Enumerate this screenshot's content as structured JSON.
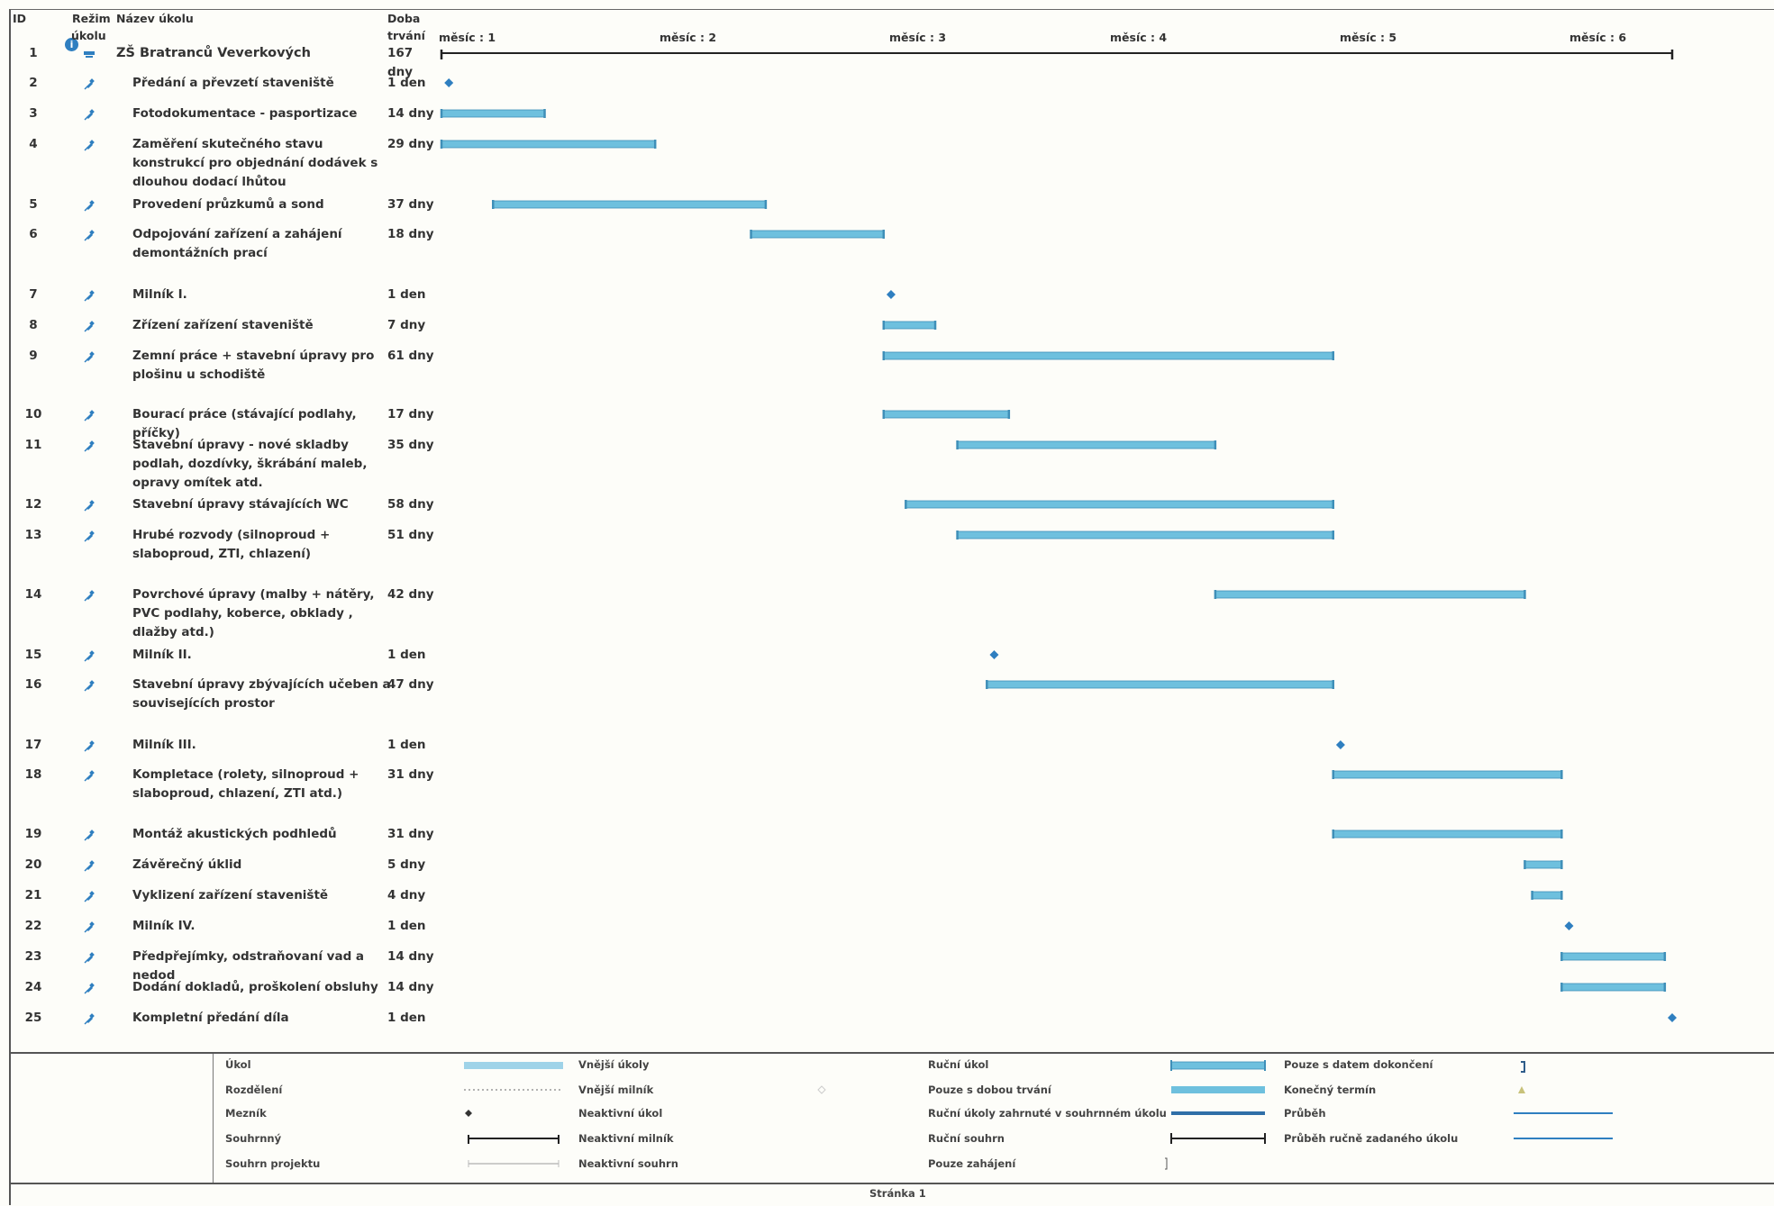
{
  "header": {
    "id_label": "ID",
    "mode_label_1": "Režim",
    "mode_label_2": "úkolu",
    "name_label": "Název úkolu",
    "dur_label_1": "Doba",
    "dur_label_2": "trvání"
  },
  "timescale": {
    "months": [
      "měsíc : 1",
      "měsíc : 2",
      "měsíc : 3",
      "měsíc : 4",
      "měsíc : 5",
      "měsíc : 6"
    ]
  },
  "colors": {
    "task_bar": "#6ec0de",
    "task_bar_edge": "#3f8fb8",
    "milestone": "#2f7fc0",
    "summary": "#222222",
    "mode_icon": "#2f7fc0"
  },
  "tasks": [
    {
      "id": "1",
      "name": "ZŠ Bratranců Veverkových",
      "duration": "167 dny",
      "start_day": 0,
      "days": 167,
      "type": "summary"
    },
    {
      "id": "2",
      "name": "Předání a převzetí staveniště",
      "duration": "1 den",
      "start_day": 1,
      "days": 0,
      "type": "milestone"
    },
    {
      "id": "3",
      "name": "Fotodokumentace - pasportizace",
      "duration": "14 dny",
      "start_day": 0,
      "days": 14,
      "type": "task"
    },
    {
      "id": "4",
      "name": "Zaměření skutečného stavu konstrukcí pro objednání dodávek s dlouhou dodací lhůtou",
      "duration": "29 dny",
      "start_day": 0,
      "days": 29,
      "type": "task"
    },
    {
      "id": "5",
      "name": "Provedení průzkumů a sond",
      "duration": "37 dny",
      "start_day": 7,
      "days": 37,
      "type": "task"
    },
    {
      "id": "6",
      "name": "Odpojování zařízení a zahájení demontážních prací",
      "duration": "18 dny",
      "start_day": 42,
      "days": 18,
      "type": "task"
    },
    {
      "id": "7",
      "name": "Milník I.",
      "duration": "1 den",
      "start_day": 61,
      "days": 0,
      "type": "milestone"
    },
    {
      "id": "8",
      "name": "Zřízení zařízení staveniště",
      "duration": "7 dny",
      "start_day": 60,
      "days": 7,
      "type": "task"
    },
    {
      "id": "9",
      "name": "Zemní práce + stavební úpravy pro plošinu u schodiště",
      "duration": "61 dny",
      "start_day": 60,
      "days": 61,
      "type": "task"
    },
    {
      "id": "10",
      "name": "Bourací práce (stávající podlahy, příčky)",
      "duration": "17 dny",
      "start_day": 60,
      "days": 17,
      "type": "task"
    },
    {
      "id": "11",
      "name": "Stavební úpravy - nové skladby podlah, dozdívky, škrábání maleb, opravy omítek atd.",
      "duration": "35 dny",
      "start_day": 70,
      "days": 35,
      "type": "task"
    },
    {
      "id": "12",
      "name": "Stavební úpravy stávajících WC",
      "duration": "58 dny",
      "start_day": 63,
      "days": 58,
      "type": "task"
    },
    {
      "id": "13",
      "name": "Hrubé rozvody (silnoproud + slaboproud, ZTI, chlazení)",
      "duration": "51 dny",
      "start_day": 70,
      "days": 51,
      "type": "task"
    },
    {
      "id": "14",
      "name": "Povrchové úpravy (malby + nátěry, PVC podlahy, koberce, obklady , dlažby atd.)",
      "duration": "42 dny",
      "start_day": 105,
      "days": 42,
      "type": "task"
    },
    {
      "id": "15",
      "name": "Milník II.",
      "duration": "1 den",
      "start_day": 75,
      "days": 0,
      "type": "milestone"
    },
    {
      "id": "16",
      "name": "Stavební úpravy zbývajících učeben a souvisejících prostor",
      "duration": "47 dny",
      "start_day": 74,
      "days": 47,
      "type": "task"
    },
    {
      "id": "17",
      "name": "Milník III.",
      "duration": "1 den",
      "start_day": 122,
      "days": 0,
      "type": "milestone"
    },
    {
      "id": "18",
      "name": "Kompletace (rolety, silnoproud + slaboproud, chlazení, ZTI atd.)",
      "duration": "31 dny",
      "start_day": 121,
      "days": 31,
      "type": "task"
    },
    {
      "id": "19",
      "name": "Montáž akustických podhledů",
      "duration": "31 dny",
      "start_day": 121,
      "days": 31,
      "type": "task"
    },
    {
      "id": "20",
      "name": "Závěrečný úklid",
      "duration": "5 dny",
      "start_day": 147,
      "days": 5,
      "type": "task"
    },
    {
      "id": "21",
      "name": "Vyklizení zařízení staveniště",
      "duration": "4 dny",
      "start_day": 148,
      "days": 4,
      "type": "task"
    },
    {
      "id": "22",
      "name": "Milník IV.",
      "duration": "1 den",
      "start_day": 153,
      "days": 0,
      "type": "milestone"
    },
    {
      "id": "23",
      "name": "Předpřejímky, odstraňovaní vad a nedod",
      "duration": "14 dny",
      "start_day": 152,
      "days": 14,
      "type": "task"
    },
    {
      "id": "24",
      "name": "Dodání dokladů, proškolení obsluhy",
      "duration": "14 dny",
      "start_day": 152,
      "days": 14,
      "type": "task"
    },
    {
      "id": "25",
      "name": "Kompletní předání díla",
      "duration": "1 den",
      "start_day": 167,
      "days": 0,
      "type": "milestone"
    }
  ],
  "legend": {
    "col1": [
      "Úkol",
      "Rozdělení",
      "Mezník",
      "Souhrnný",
      "Souhrn projektu"
    ],
    "col2": [
      "Vnější úkoly",
      "Vnější milník",
      "Neaktivní úkol",
      "Neaktivní milník",
      "Neaktivní souhrn"
    ],
    "col3": [
      "Ruční úkol",
      "Pouze s dobou trvání",
      "Ruční úkoly zahrnuté v souhrnném úkolu",
      "Ruční souhrn",
      "Pouze zahájení"
    ],
    "col4": [
      "Pouze s datem dokončení",
      "Konečný termín",
      "Průběh",
      "Průběh ručně zadaného úkolu"
    ]
  },
  "footer": {
    "page": "Stránka 1"
  }
}
